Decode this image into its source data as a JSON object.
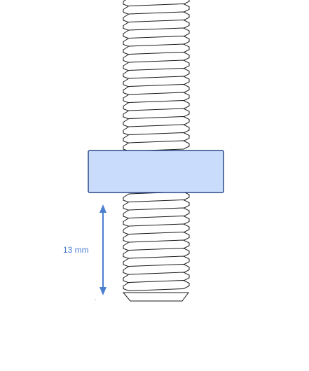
{
  "dimension": {
    "label": "13 mm",
    "color": "#4a7fd0"
  },
  "nut": {
    "fill": "#c9dcfb",
    "stroke": "#2c4a8a"
  },
  "rod": {
    "stroke": "#1a1a1a",
    "fill": "#ffffff"
  }
}
